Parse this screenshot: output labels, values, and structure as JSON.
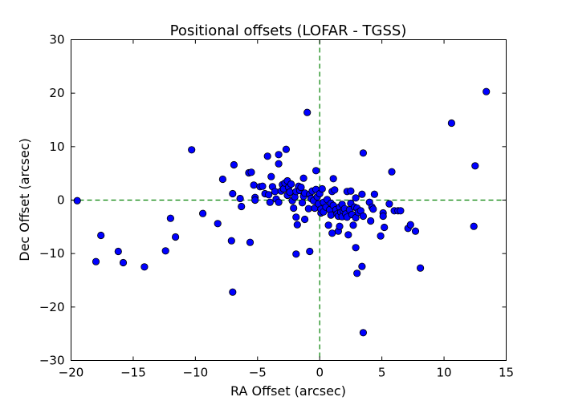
{
  "chart_data": {
    "type": "scatter",
    "title": "Positional offsets (LOFAR - TGSS)",
    "xlabel": "RA Offset (arcsec)",
    "ylabel": "Dec Offset (arcsec)",
    "xlim": [
      -20,
      15
    ],
    "ylim": [
      -30,
      30
    ],
    "xticks": [
      -20,
      -15,
      -10,
      -5,
      0,
      5,
      10,
      15
    ],
    "yticks": [
      -30,
      -20,
      -10,
      0,
      10,
      20,
      30
    ],
    "grid": false,
    "reference_lines": {
      "x": 0,
      "y": 0,
      "style": "dashed",
      "color": "#008000"
    },
    "marker_color": "#0000ff",
    "marker_edge_color": "#000000",
    "points": [
      [
        -19.5,
        -0.1
      ],
      [
        -18.0,
        -11.5
      ],
      [
        -17.6,
        -6.6
      ],
      [
        -16.2,
        -9.6
      ],
      [
        -15.8,
        -11.7
      ],
      [
        -14.1,
        -12.5
      ],
      [
        -12.4,
        -9.5
      ],
      [
        -12.0,
        -3.4
      ],
      [
        -11.6,
        -6.9
      ],
      [
        -10.3,
        9.4
      ],
      [
        -9.4,
        -2.5
      ],
      [
        -8.2,
        -4.4
      ],
      [
        -7.8,
        3.9
      ],
      [
        -7.1,
        -7.6
      ],
      [
        -7.0,
        -17.2
      ],
      [
        -6.9,
        6.6
      ],
      [
        -7.0,
        1.2
      ],
      [
        -6.4,
        0.3
      ],
      [
        -6.3,
        -1.2
      ],
      [
        -5.7,
        5.1
      ],
      [
        -5.5,
        5.2
      ],
      [
        -5.6,
        -7.9
      ],
      [
        -5.2,
        0.5
      ],
      [
        -5.3,
        2.8
      ],
      [
        -5.2,
        0.0
      ],
      [
        -4.8,
        2.5
      ],
      [
        -4.6,
        2.6
      ],
      [
        -4.4,
        1.2
      ],
      [
        -4.2,
        8.2
      ],
      [
        -4.1,
        1.0
      ],
      [
        -4.0,
        -0.4
      ],
      [
        -3.9,
        4.4
      ],
      [
        -3.8,
        2.5
      ],
      [
        -3.6,
        1.6
      ],
      [
        -3.5,
        0.2
      ],
      [
        -3.3,
        8.5
      ],
      [
        -3.3,
        6.8
      ],
      [
        -3.3,
        -0.4
      ],
      [
        -3.1,
        1.7
      ],
      [
        -3.0,
        2.9
      ],
      [
        -2.9,
        2.1
      ],
      [
        -2.8,
        3.2
      ],
      [
        -2.7,
        9.5
      ],
      [
        -2.6,
        3.6
      ],
      [
        -2.6,
        0.9
      ],
      [
        -2.5,
        2.4
      ],
      [
        -2.4,
        1.5
      ],
      [
        -2.3,
        3.0
      ],
      [
        -2.2,
        -0.1
      ],
      [
        -2.1,
        -1.5
      ],
      [
        -2.0,
        0.6
      ],
      [
        -1.9,
        1.6
      ],
      [
        -1.9,
        -3.2
      ],
      [
        -1.9,
        -10.1
      ],
      [
        -1.8,
        -4.6
      ],
      [
        -1.7,
        2.6
      ],
      [
        -1.6,
        1.8
      ],
      [
        -1.5,
        2.4
      ],
      [
        -1.4,
        -0.5
      ],
      [
        -1.3,
        0.7
      ],
      [
        -1.3,
        4.1
      ],
      [
        -1.2,
        1.3
      ],
      [
        -1.2,
        -3.6
      ],
      [
        -1.0,
        16.4
      ],
      [
        -0.9,
        -1.6
      ],
      [
        -0.8,
        1.1
      ],
      [
        -0.8,
        -9.6
      ],
      [
        -0.7,
        0.3
      ],
      [
        -0.6,
        1.7
      ],
      [
        -0.5,
        -0.1
      ],
      [
        -0.4,
        -1.5
      ],
      [
        -0.3,
        2.0
      ],
      [
        -0.3,
        5.5
      ],
      [
        -0.2,
        0.6
      ],
      [
        -0.1,
        -0.7
      ],
      [
        0.0,
        1.2
      ],
      [
        0.1,
        -2.4
      ],
      [
        0.1,
        -1.7
      ],
      [
        0.2,
        2.1
      ],
      [
        0.3,
        -0.4
      ],
      [
        0.3,
        -2.2
      ],
      [
        0.5,
        -1.3
      ],
      [
        0.6,
        0.1
      ],
      [
        0.7,
        -4.7
      ],
      [
        0.8,
        -1.8
      ],
      [
        0.9,
        -2.8
      ],
      [
        0.9,
        -0.6
      ],
      [
        1.0,
        1.6
      ],
      [
        1.0,
        -6.2
      ],
      [
        1.1,
        -1.0
      ],
      [
        1.1,
        4.0
      ],
      [
        1.2,
        1.9
      ],
      [
        1.3,
        -1.8
      ],
      [
        1.4,
        -2.6
      ],
      [
        1.5,
        -3.0
      ],
      [
        1.5,
        -5.8
      ],
      [
        1.6,
        -1.3
      ],
      [
        1.6,
        -4.9
      ],
      [
        1.7,
        -2.3
      ],
      [
        1.8,
        -0.8
      ],
      [
        1.8,
        -3.1
      ],
      [
        1.9,
        -2.0
      ],
      [
        2.0,
        -1.6
      ],
      [
        2.1,
        -2.6
      ],
      [
        2.2,
        -3.2
      ],
      [
        2.2,
        1.6
      ],
      [
        2.3,
        -6.5
      ],
      [
        2.4,
        -1.8
      ],
      [
        2.5,
        -0.6
      ],
      [
        2.5,
        1.7
      ],
      [
        2.6,
        -2.7
      ],
      [
        2.7,
        -4.7
      ],
      [
        2.8,
        -1.3
      ],
      [
        2.9,
        0.4
      ],
      [
        2.9,
        -3.3
      ],
      [
        2.9,
        -8.9
      ],
      [
        3.0,
        -13.7
      ],
      [
        3.0,
        -1.5
      ],
      [
        3.1,
        -2.3
      ],
      [
        3.3,
        -2.0
      ],
      [
        3.4,
        1.1
      ],
      [
        3.4,
        -12.4
      ],
      [
        3.5,
        -3.0
      ],
      [
        3.5,
        8.8
      ],
      [
        3.5,
        -24.8
      ],
      [
        4.0,
        -0.4
      ],
      [
        4.1,
        -3.9
      ],
      [
        4.2,
        -1.3
      ],
      [
        4.3,
        -1.7
      ],
      [
        4.4,
        1.1
      ],
      [
        4.9,
        -6.7
      ],
      [
        5.1,
        -2.4
      ],
      [
        5.1,
        -3.0
      ],
      [
        5.2,
        -5.1
      ],
      [
        5.6,
        -0.7
      ],
      [
        5.8,
        5.3
      ],
      [
        6.0,
        -2.0
      ],
      [
        6.3,
        -2.0
      ],
      [
        6.5,
        -2.0
      ],
      [
        7.1,
        -5.3
      ],
      [
        7.3,
        -4.6
      ],
      [
        7.7,
        -5.8
      ],
      [
        8.1,
        -12.7
      ],
      [
        10.6,
        14.4
      ],
      [
        12.4,
        -4.9
      ],
      [
        12.5,
        6.4
      ],
      [
        13.4,
        20.3
      ]
    ]
  }
}
